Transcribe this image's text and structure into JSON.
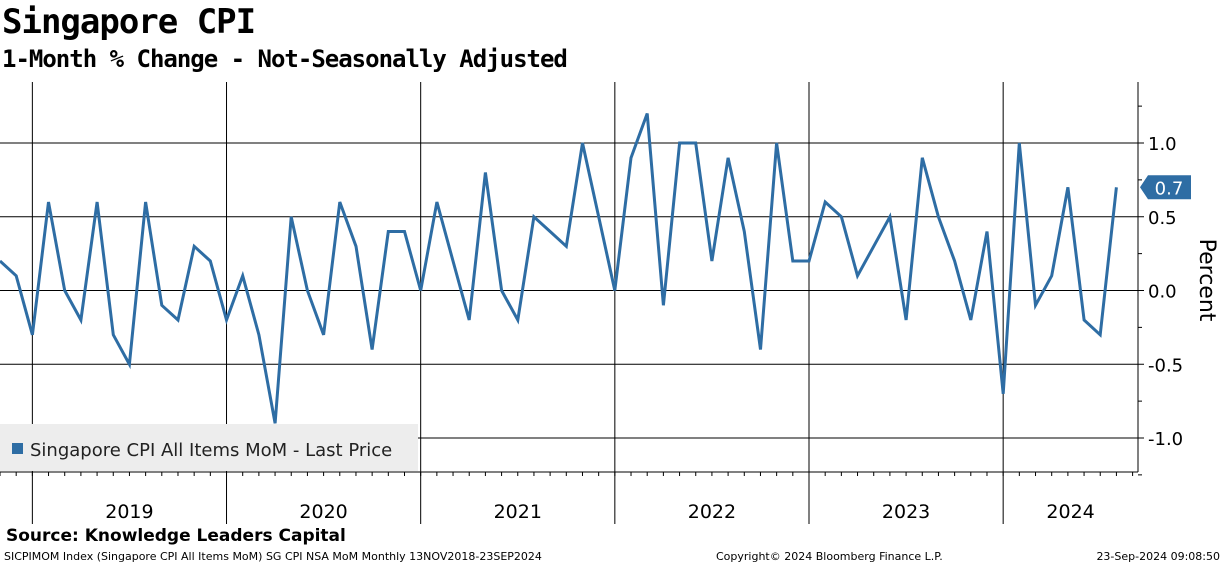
{
  "header": {
    "title": "Singapore CPI",
    "subtitle": "1-Month % Change - Not-Seasonally Adjusted"
  },
  "footer": {
    "source": "Source: Knowledge Leaders Capital",
    "index_info": "SICPIMOM Index (Singapore CPI All Items MoM) SG CPI NSA MoM  Monthly 13NOV2018-23SEP2024",
    "copyright": "Copyright© 2024 Bloomberg Finance L.P.",
    "timestamp": "23-Sep-2024 09:08:50"
  },
  "colors": {
    "series": "#2E6DA4",
    "grid": "#000000",
    "legend_bg": "#EDEDED",
    "label_text": "#ffffff"
  },
  "chart_data": {
    "type": "line",
    "title": "Singapore CPI",
    "subtitle": "1-Month % Change - Not-Seasonally Adjusted",
    "ylabel": "Percent",
    "xlabel": "",
    "ylim": [
      -1.25,
      1.4
    ],
    "y_ticks": [
      1.0,
      0.5,
      0.0,
      -0.5,
      -1.0
    ],
    "y_tick_labels": [
      "1.0",
      "0.5",
      "0.0",
      "-0.5",
      "-1.0"
    ],
    "x_tick_labels": [
      "2019",
      "2020",
      "2021",
      "2022",
      "2023",
      "2024"
    ],
    "grid": true,
    "legend_position": "bottom-left",
    "last_value_label": "0.7",
    "series": [
      {
        "name": "Singapore CPI All Items MoM - Last Price",
        "start": "2018-11",
        "values": [
          0.2,
          0.1,
          -0.3,
          0.6,
          0.0,
          -0.2,
          0.6,
          -0.3,
          -0.5,
          0.6,
          -0.1,
          -0.2,
          0.3,
          0.2,
          -0.2,
          0.1,
          -0.3,
          -0.9,
          0.5,
          0.0,
          -0.3,
          0.6,
          0.3,
          -0.4,
          0.4,
          0.4,
          0.0,
          0.6,
          0.2,
          -0.2,
          0.8,
          0.0,
          -0.2,
          0.5,
          0.4,
          0.3,
          1.0,
          0.5,
          0.0,
          0.9,
          1.2,
          -0.1,
          1.0,
          1.0,
          0.2,
          0.9,
          0.4,
          -0.4,
          1.0,
          0.2,
          0.2,
          0.6,
          0.5,
          0.1,
          0.3,
          0.5,
          -0.2,
          0.9,
          0.5,
          0.2,
          -0.2,
          0.4,
          -0.7,
          1.0,
          -0.1,
          0.1,
          0.7,
          -0.2,
          -0.3,
          0.7
        ]
      }
    ]
  }
}
